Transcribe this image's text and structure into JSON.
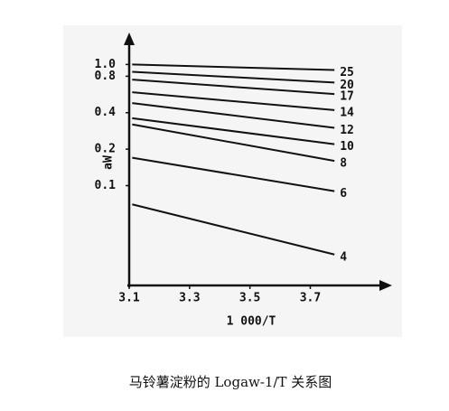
{
  "chart_data": {
    "type": "line",
    "caption": "马铃薯淀粉的 Logaw-1/T 关系图",
    "xlabel": "1 000/T",
    "ylabel": "aW",
    "log_y": true,
    "x": [
      3.11,
      3.78
    ],
    "xlim": [
      3.1,
      3.95
    ],
    "xticks": [
      3.1,
      3.3,
      3.5,
      3.7
    ],
    "ylim": [
      0.015,
      1.6
    ],
    "yticks": [
      {
        "value": 1,
        "label": "1.0"
      },
      0.8,
      0.4,
      0.2,
      0.1
    ],
    "color": "#111111",
    "series": [
      {
        "name": "25",
        "values": [
          1.0,
          0.9
        ]
      },
      {
        "name": "20",
        "values": [
          0.87,
          0.71
        ]
      },
      {
        "name": "17",
        "values": [
          0.75,
          0.57
        ]
      },
      {
        "name": "14",
        "values": [
          0.59,
          0.42
        ]
      },
      {
        "name": "12",
        "values": [
          0.48,
          0.3
        ]
      },
      {
        "name": "10",
        "values": [
          0.36,
          0.22
        ]
      },
      {
        "name": "8",
        "values": [
          0.32,
          0.16
        ]
      },
      {
        "name": "6",
        "values": [
          0.17,
          0.09
        ]
      },
      {
        "name": "4",
        "values": [
          0.07,
          0.027
        ]
      }
    ]
  }
}
